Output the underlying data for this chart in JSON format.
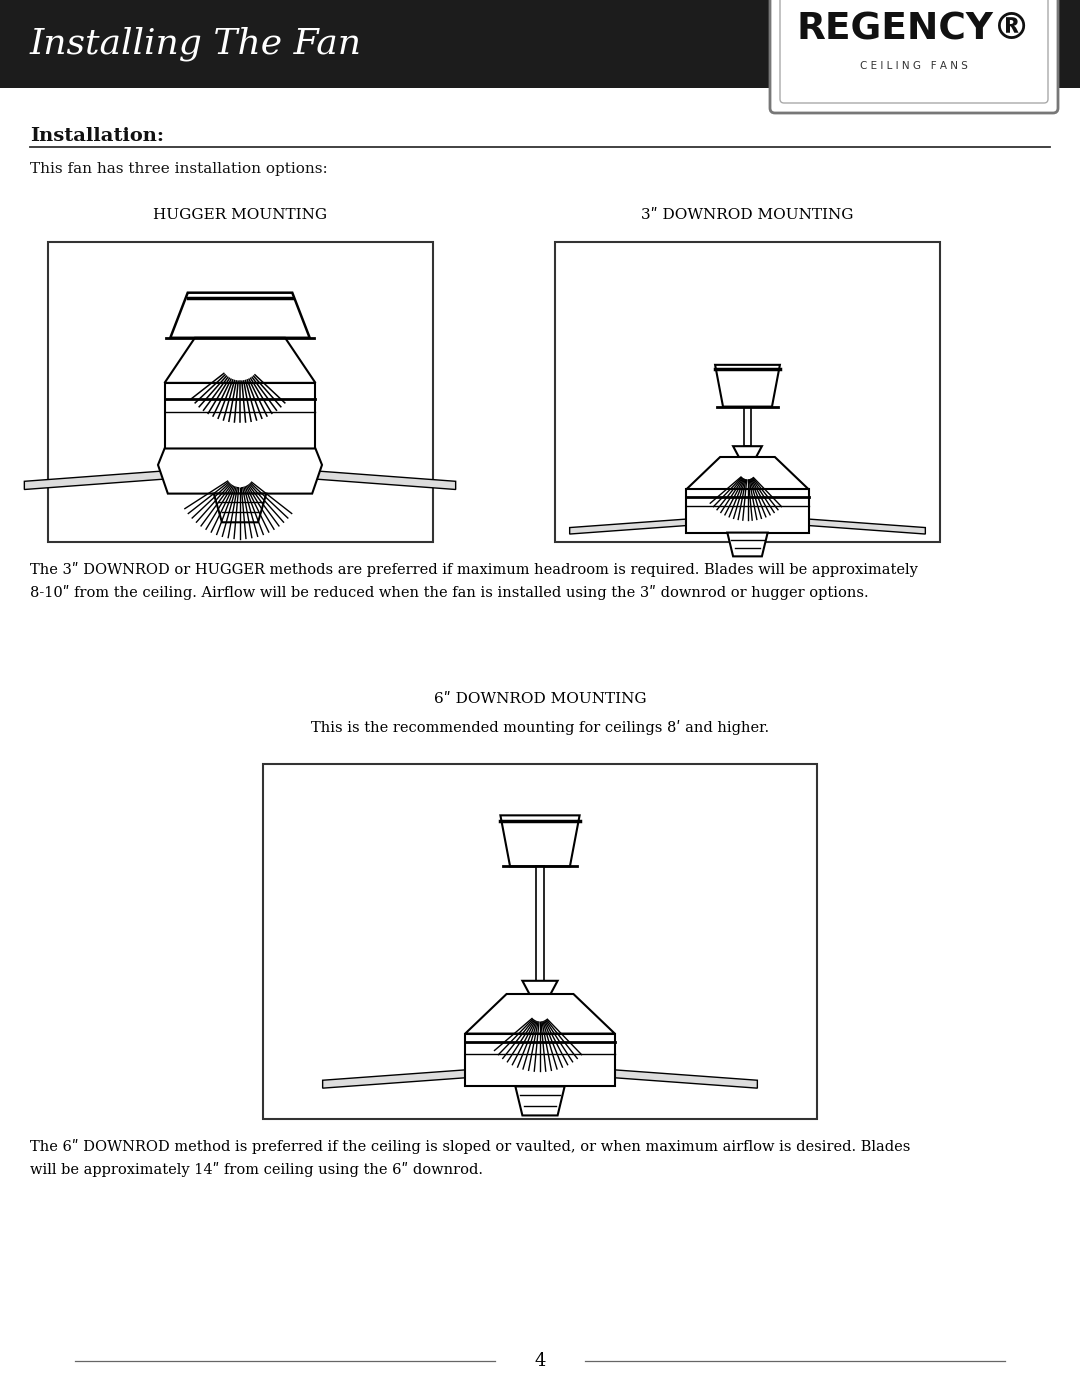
{
  "page_title": "Installing The Fan",
  "logo_text": "REGENCY®",
  "logo_sub": "C E I L I N G   F A N S",
  "section_title": "Installation:",
  "intro_text": "This fan has three installation options:",
  "header_bg": "#1c1c1c",
  "header_text_color": "#ffffff",
  "body_bg": "#ffffff",
  "body_text_color": "#111111",
  "hugger_label": "HUGGER MOUNTING",
  "downrod3_label": "3ʺ DOWNROD MOUNTING",
  "downrod6_label": "6ʺ DOWNROD MOUNTING",
  "downrod6_sub": "This is the recommended mounting for ceilings 8ʹ and higher.",
  "para1": "The 3ʺ DOWNROD or HUGGER methods are preferred if maximum headroom is required. Blades will be approximately\n8-10ʺ from the ceiling. Airflow will be reduced when the fan is installed using the 3ʺ downrod or hugger options.",
  "para2": "The 6ʺ DOWNROD method is preferred if the ceiling is sloped or vaulted, or when maximum airflow is desired. Blades\nwill be approximately 14ʺ from ceiling using the 6ʺ downrod.",
  "page_number": "4"
}
